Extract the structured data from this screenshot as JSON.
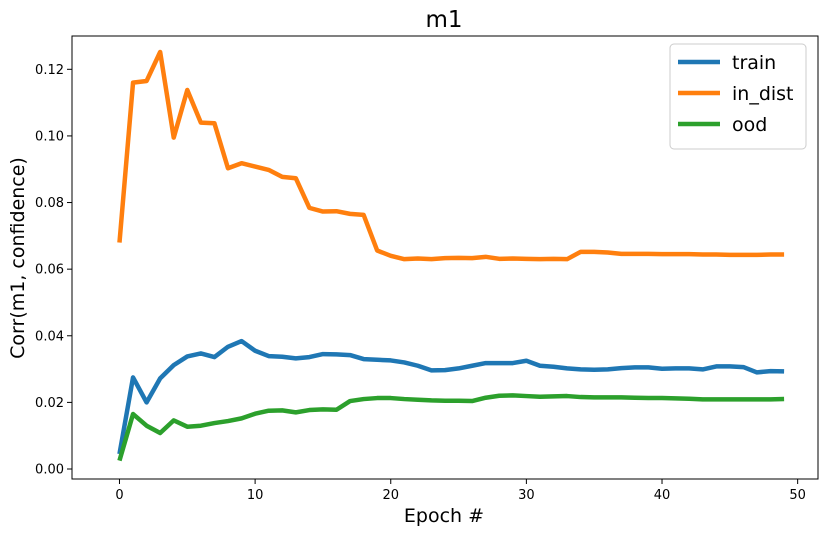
{
  "chart_data": {
    "type": "line",
    "title": "m1",
    "xlabel": "Epoch #",
    "ylabel": "Corr(m1, confidence)",
    "xlim": [
      -3.5,
      51.5
    ],
    "ylim": [
      -0.003,
      0.13
    ],
    "xticks": [
      0,
      10,
      20,
      30,
      40,
      50
    ],
    "yticks": [
      0.0,
      0.02,
      0.04,
      0.06,
      0.08,
      0.1,
      0.12
    ],
    "ytick_labels": [
      "0.00",
      "0.02",
      "0.04",
      "0.06",
      "0.08",
      "0.10",
      "0.12"
    ],
    "grid": false,
    "legend_position": "top-right",
    "x": [
      0,
      1,
      2,
      3,
      4,
      5,
      6,
      7,
      8,
      9,
      10,
      11,
      12,
      13,
      14,
      15,
      16,
      17,
      18,
      19,
      20,
      21,
      22,
      23,
      24,
      25,
      26,
      27,
      28,
      29,
      30,
      31,
      32,
      33,
      34,
      35,
      36,
      37,
      38,
      39,
      40,
      41,
      42,
      43,
      44,
      45,
      46,
      47,
      48,
      49
    ],
    "series": [
      {
        "name": "train",
        "color": "#1f77b4",
        "values": [
          0.0045,
          0.0275,
          0.02,
          0.0272,
          0.0312,
          0.0338,
          0.0347,
          0.0336,
          0.0367,
          0.0384,
          0.0355,
          0.0339,
          0.0337,
          0.0332,
          0.0336,
          0.0345,
          0.0344,
          0.0342,
          0.033,
          0.0328,
          0.0326,
          0.032,
          0.031,
          0.0296,
          0.0297,
          0.0302,
          0.031,
          0.0318,
          0.0318,
          0.0318,
          0.0325,
          0.031,
          0.0307,
          0.0302,
          0.0299,
          0.0298,
          0.0299,
          0.0303,
          0.0305,
          0.0305,
          0.0301,
          0.0302,
          0.0302,
          0.0299,
          0.0308,
          0.0308,
          0.0306,
          0.029,
          0.0294,
          0.0293
        ]
      },
      {
        "name": "in_dist",
        "color": "#ff7f0e",
        "values": [
          0.068,
          0.116,
          0.1165,
          0.1252,
          0.0995,
          0.1138,
          0.104,
          0.1038,
          0.0903,
          0.0918,
          0.0908,
          0.0898,
          0.0877,
          0.0873,
          0.0784,
          0.0773,
          0.0774,
          0.0766,
          0.0763,
          0.0656,
          0.064,
          0.063,
          0.0632,
          0.063,
          0.0633,
          0.0634,
          0.0633,
          0.0637,
          0.0631,
          0.0632,
          0.0631,
          0.063,
          0.0631,
          0.063,
          0.0652,
          0.0652,
          0.065,
          0.0646,
          0.0646,
          0.0646,
          0.0645,
          0.0645,
          0.0645,
          0.0644,
          0.0644,
          0.0643,
          0.0643,
          0.0643,
          0.0644,
          0.0644
        ]
      },
      {
        "name": "ood",
        "color": "#2ca02c",
        "values": [
          0.0025,
          0.0165,
          0.013,
          0.0108,
          0.0146,
          0.0127,
          0.013,
          0.0138,
          0.0144,
          0.0152,
          0.0166,
          0.0175,
          0.0176,
          0.017,
          0.0177,
          0.0179,
          0.0178,
          0.0204,
          0.021,
          0.0213,
          0.0213,
          0.021,
          0.0208,
          0.0206,
          0.0205,
          0.0205,
          0.0204,
          0.0214,
          0.022,
          0.0221,
          0.0219,
          0.0217,
          0.0218,
          0.0219,
          0.0216,
          0.0215,
          0.0215,
          0.0215,
          0.0214,
          0.0213,
          0.0213,
          0.0212,
          0.0211,
          0.0209,
          0.0209,
          0.0209,
          0.0209,
          0.0209,
          0.0209,
          0.021
        ]
      }
    ]
  }
}
